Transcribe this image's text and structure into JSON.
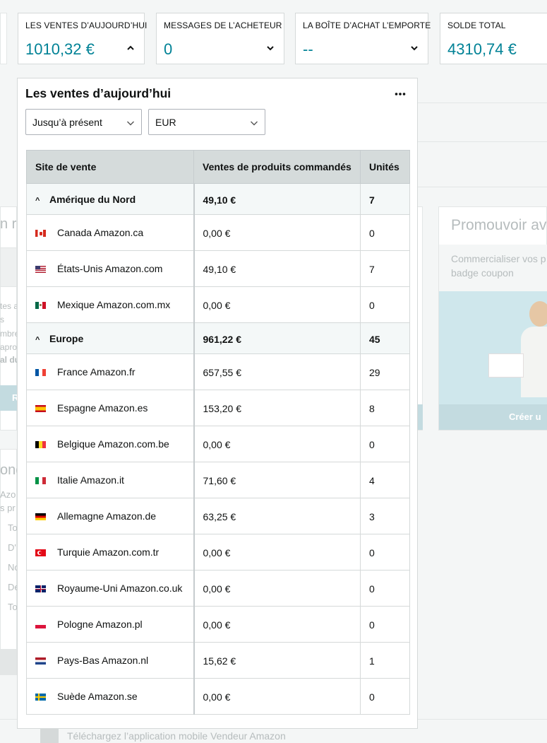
{
  "cards": [
    {
      "label": "LES VENTES D’AUJOURD’HUI",
      "value": "1010,32 €",
      "chevron": "up"
    },
    {
      "label": "MESSAGES DE L’ACHETEUR",
      "value": "0",
      "chevron": "down"
    },
    {
      "label": "LA BOÎTE D’ACHAT L’EMPORTE",
      "value": "--",
      "chevron": "down"
    },
    {
      "label": "SOLDE TOTAL",
      "value": "4310,74 €",
      "chevron": null
    }
  ],
  "panel": {
    "title": "Les ventes d’aujourd’hui",
    "more_icon": "more-dots-icon",
    "period_select": "Jusqu’à présent",
    "currency_select": "EUR",
    "columns": [
      "Site de vente",
      "Ventes de produits commandés",
      "Unités"
    ],
    "regions": [
      {
        "name": "Amérique du Nord",
        "sales": "49,10 €",
        "units": "7",
        "sites": [
          {
            "flag": "ca",
            "name": "Canada Amazon.ca",
            "sales": "0,00 €",
            "units": "0"
          },
          {
            "flag": "us",
            "name": "États-Unis Amazon.com",
            "sales": "49,10 €",
            "units": "7"
          },
          {
            "flag": "mx",
            "name": "Mexique Amazon.com.mx",
            "sales": "0,00 €",
            "units": "0"
          }
        ]
      },
      {
        "name": "Europe",
        "sales": "961,22 €",
        "units": "45",
        "sites": [
          {
            "flag": "fr",
            "name": "France Amazon.fr",
            "sales": "657,55 €",
            "units": "29"
          },
          {
            "flag": "es",
            "name": "Espagne Amazon.es",
            "sales": "153,20 €",
            "units": "8"
          },
          {
            "flag": "be",
            "name": "Belgique Amazon.com.be",
            "sales": "0,00 €",
            "units": "0"
          },
          {
            "flag": "it",
            "name": "Italie Amazon.it",
            "sales": "71,60 €",
            "units": "4"
          },
          {
            "flag": "de",
            "name": "Allemagne Amazon.de",
            "sales": "63,25 €",
            "units": "3"
          },
          {
            "flag": "tr",
            "name": "Turquie Amazon.com.tr",
            "sales": "0,00 €",
            "units": "0"
          },
          {
            "flag": "gb",
            "name": "Royaume-Uni Amazon.co.uk",
            "sales": "0,00 €",
            "units": "0"
          },
          {
            "flag": "pl",
            "name": "Pologne Amazon.pl",
            "sales": "0,00 €",
            "units": "0"
          },
          {
            "flag": "nl",
            "name": "Pays-Bas Amazon.nl",
            "sales": "15,62 €",
            "units": "1"
          },
          {
            "flag": "se",
            "name": "Suède Amazon.se",
            "sales": "0,00 €",
            "units": "0"
          }
        ]
      }
    ]
  },
  "background": {
    "promo_title": "Promouvoir av",
    "promo_text_1": "Commercialiser vos p",
    "promo_text_2": "badge coupon",
    "promo_button": "Créer u",
    "left_fragment_1": "n ru",
    "left_button": "R",
    "left_fragment_2": "onc",
    "left_list": [
      "Azo",
      "s pr",
      "To",
      "D'",
      "No",
      "De",
      "To"
    ],
    "left_side_text": [
      "tes a",
      "s",
      "mbre",
      "aprov",
      "al du"
    ]
  },
  "footer": {
    "app_hint": "Téléchargez l’application mobile Vendeur Amazon"
  },
  "colors": {
    "accent": "#008296",
    "header_bg": "#d5dbdb",
    "region_bg": "#f4f8f8"
  }
}
